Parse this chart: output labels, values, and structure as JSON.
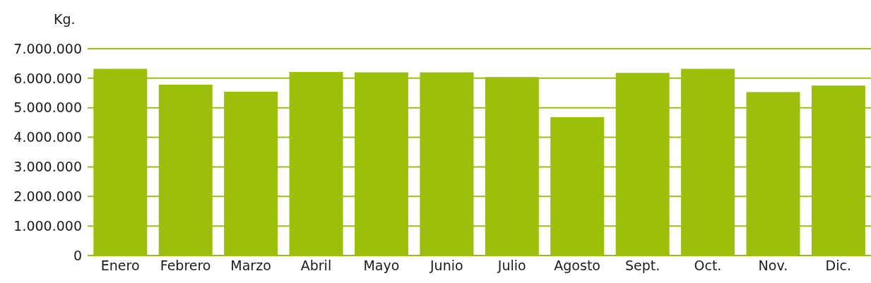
{
  "chart_data": {
    "type": "bar",
    "ylabel": "Kg.",
    "categories": [
      "Enero",
      "Febrero",
      "Marzo",
      "Abril",
      "Mayo",
      "Junio",
      "Julio",
      "Agosto",
      "Sept.",
      "Oct.",
      "Nov.",
      "Dic."
    ],
    "values": [
      6320000,
      5780000,
      5540000,
      6210000,
      6200000,
      6200000,
      6040000,
      4680000,
      6180000,
      6320000,
      5530000,
      5750000
    ],
    "color": "#9bbf0a",
    "ylim": [
      0,
      7000000
    ],
    "yticks": [
      0,
      {
        "value": 1000000,
        "label": "1.000.000"
      },
      {
        "value": 2000000,
        "label": "2.000.000"
      },
      {
        "value": 3000000,
        "label": "3.000.000"
      },
      {
        "value": 4000000,
        "label": "4.000.000"
      },
      {
        "value": 5000000,
        "label": "5.000.000"
      },
      {
        "value": 6000000,
        "label": "6.000.000"
      },
      {
        "value": 7000000,
        "label": "7.000.000"
      }
    ],
    "grid": "y"
  }
}
